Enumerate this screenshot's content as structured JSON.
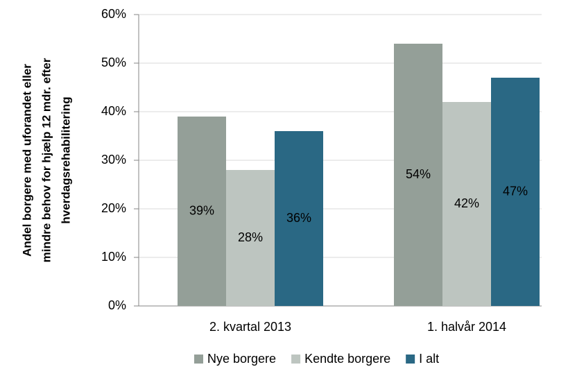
{
  "chart_data": {
    "type": "bar",
    "y_label": [
      "Andel borgere med uforandet eller",
      "mindre behov for hjælp 12 mdr. efter",
      "hverdagsrehabilitering"
    ],
    "categories": [
      "2. kvartal 2013",
      "1. halvår 2014"
    ],
    "series": [
      {
        "name": "Nye borgere",
        "color": "#949f98",
        "values": [
          39,
          54
        ],
        "value_labels": [
          "39%",
          "54%"
        ]
      },
      {
        "name": "Kendte borgere",
        "color": "#bdc5c0",
        "values": [
          28,
          42
        ],
        "value_labels": [
          "28%",
          "42%"
        ]
      },
      {
        "name": "I alt",
        "color": "#2a6884",
        "values": [
          36,
          47
        ],
        "value_labels": [
          "36%",
          "47%"
        ]
      }
    ],
    "ylim": [
      0,
      60
    ],
    "yticks": [
      {
        "value": 0,
        "label": "0%"
      },
      {
        "value": 10,
        "label": "10%"
      },
      {
        "value": 20,
        "label": "20%"
      },
      {
        "value": 30,
        "label": "30%"
      },
      {
        "value": 40,
        "label": "40%"
      },
      {
        "value": 50,
        "label": "50%"
      },
      {
        "value": 60,
        "label": "60%"
      }
    ],
    "grid": true,
    "legend": "bottom"
  }
}
